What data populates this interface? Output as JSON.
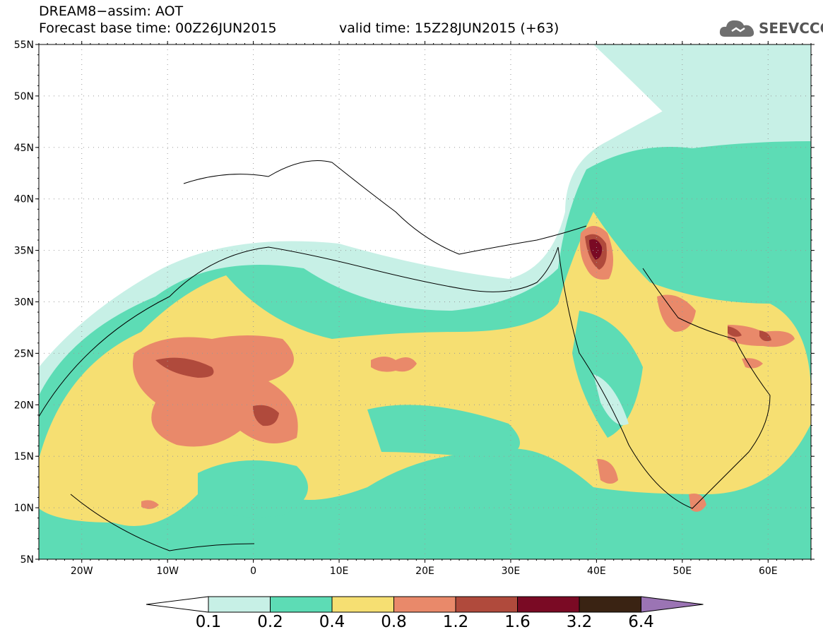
{
  "header": {
    "line1": "DREAM8−assim: AOT",
    "base_time": "Forecast base time: 00Z26JUN2015",
    "valid_time": "valid time: 15Z28JUN2015 (+63)"
  },
  "logo": {
    "text": "SEEVCCC",
    "icon": "cloud-icon"
  },
  "map": {
    "lon_range": [
      -25,
      65
    ],
    "lat_range": [
      5,
      55
    ],
    "lat_labels": [
      "55N",
      "50N",
      "45N",
      "40N",
      "35N",
      "30N",
      "25N",
      "20N",
      "15N",
      "10N",
      "5N"
    ],
    "lon_labels": [
      "20W",
      "10W",
      "0",
      "10E",
      "20E",
      "30E",
      "40E",
      "50E",
      "60E"
    ],
    "grid": true
  },
  "colorbar": {
    "colors": [
      "#c7f0e6",
      "#5ddcb5",
      "#f6df72",
      "#e9896a",
      "#b04a3c",
      "#7a0a24",
      "#3a2313"
    ],
    "left_triangle": "#ffffff",
    "right_triangle": "#9b74b4",
    "labels": [
      "0.1",
      "0.2",
      "0.4",
      "0.8",
      "1.2",
      "1.6",
      "3.2",
      "6.4"
    ]
  }
}
